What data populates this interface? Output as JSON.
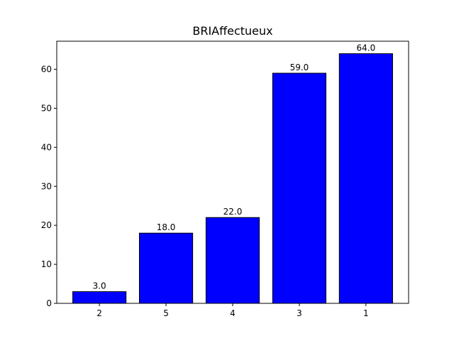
{
  "chart_data": {
    "type": "bar",
    "title": "BRIAffectueux",
    "xlabel": "",
    "ylabel": "",
    "categories": [
      "2",
      "5",
      "4",
      "3",
      "1"
    ],
    "values": [
      3.0,
      18.0,
      22.0,
      59.0,
      64.0
    ],
    "data_labels": [
      "3.0",
      "18.0",
      "22.0",
      "59.0",
      "64.0"
    ],
    "ylim": [
      0,
      67.2
    ],
    "yticks": [
      0,
      10,
      20,
      30,
      40,
      50,
      60
    ],
    "grid": false,
    "legend": "none",
    "bar_color": "#0000ff",
    "edge_color": "#000000"
  }
}
